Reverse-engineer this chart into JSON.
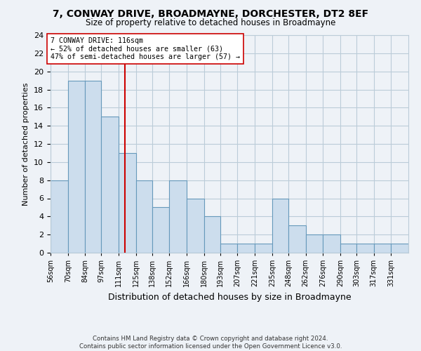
{
  "title": "7, CONWAY DRIVE, BROADMAYNE, DORCHESTER, DT2 8EF",
  "subtitle": "Size of property relative to detached houses in Broadmayne",
  "xlabel": "Distribution of detached houses by size in Broadmayne",
  "ylabel": "Number of detached properties",
  "footnote1": "Contains HM Land Registry data © Crown copyright and database right 2024.",
  "footnote2": "Contains public sector information licensed under the Open Government Licence v3.0.",
  "bin_labels": [
    "56sqm",
    "70sqm",
    "84sqm",
    "97sqm",
    "111sqm",
    "125sqm",
    "138sqm",
    "152sqm",
    "166sqm",
    "180sqm",
    "193sqm",
    "207sqm",
    "221sqm",
    "235sqm",
    "248sqm",
    "262sqm",
    "276sqm",
    "290sqm",
    "303sqm",
    "317sqm",
    "331sqm"
  ],
  "values": [
    8,
    19,
    19,
    15,
    11,
    8,
    5,
    8,
    6,
    4,
    1,
    1,
    1,
    6,
    3,
    2,
    2,
    1,
    1,
    1,
    1
  ],
  "bar_color": "#ccdded",
  "bar_edge_color": "#6699bb",
  "bar_edge_width": 0.8,
  "grid_color": "#bbccd8",
  "background_color": "#eef2f7",
  "marker_value": 116,
  "marker_label": "7 CONWAY DRIVE: 116sqm",
  "marker_text_line2": "← 52% of detached houses are smaller (63)",
  "marker_text_line3": "47% of semi-detached houses are larger (57) →",
  "annotation_box_color": "#ffffff",
  "annotation_box_edge_color": "#cc0000",
  "marker_line_color": "#cc0000",
  "ylim": [
    0,
    24
  ],
  "yticks": [
    0,
    2,
    4,
    6,
    8,
    10,
    12,
    14,
    16,
    18,
    20,
    22,
    24
  ],
  "bin_edges": [
    56,
    70,
    84,
    97,
    111,
    125,
    138,
    152,
    166,
    180,
    193,
    207,
    221,
    235,
    248,
    262,
    276,
    290,
    303,
    317,
    331,
    345
  ]
}
